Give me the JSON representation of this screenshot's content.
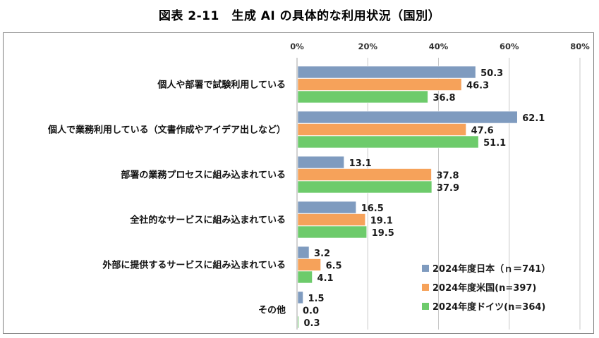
{
  "title": "図表 2-11　生成 AI の具体的な利用状況（国別）",
  "chart_data": {
    "type": "bar",
    "orientation": "horizontal",
    "xlim": [
      0,
      80
    ],
    "ticks": [
      "0%",
      "20%",
      "40%",
      "60%",
      "80%"
    ],
    "tick_values": [
      0,
      20,
      40,
      60,
      80
    ],
    "grid": true,
    "legend_position": "bottom-right",
    "categories": [
      "個人や部署で試験利用している",
      "個人で業務利用している（文書作成やアイデア出しなど）",
      "部署の業務プロセスに組み込まれている",
      "全社的なサービスに組み込まれている",
      "外部に提供するサービスに組み込まれている",
      "その他"
    ],
    "series": [
      {
        "name": "2024年度日本（ｎ＝741）",
        "color": "#7f9bbf",
        "values": [
          50.3,
          62.1,
          13.1,
          16.5,
          3.2,
          1.5
        ],
        "labels": [
          "50.3",
          "62.1",
          "13.1",
          "16.5",
          "3.2",
          "1.5"
        ]
      },
      {
        "name": "2024年度米国(n=397)",
        "color": "#f6a25a",
        "values": [
          46.3,
          47.6,
          37.8,
          19.1,
          6.5,
          0.0
        ],
        "labels": [
          "46.3",
          "47.6",
          "37.8",
          "19.1",
          "6.5",
          "0.0"
        ]
      },
      {
        "name": "2024年度ドイツ(n=364)",
        "color": "#6dcb6b",
        "values": [
          36.8,
          51.1,
          37.9,
          19.5,
          4.1,
          0.3
        ],
        "labels": [
          "36.8",
          "51.1",
          "37.9",
          "19.5",
          "4.1",
          "0.3"
        ]
      }
    ]
  }
}
